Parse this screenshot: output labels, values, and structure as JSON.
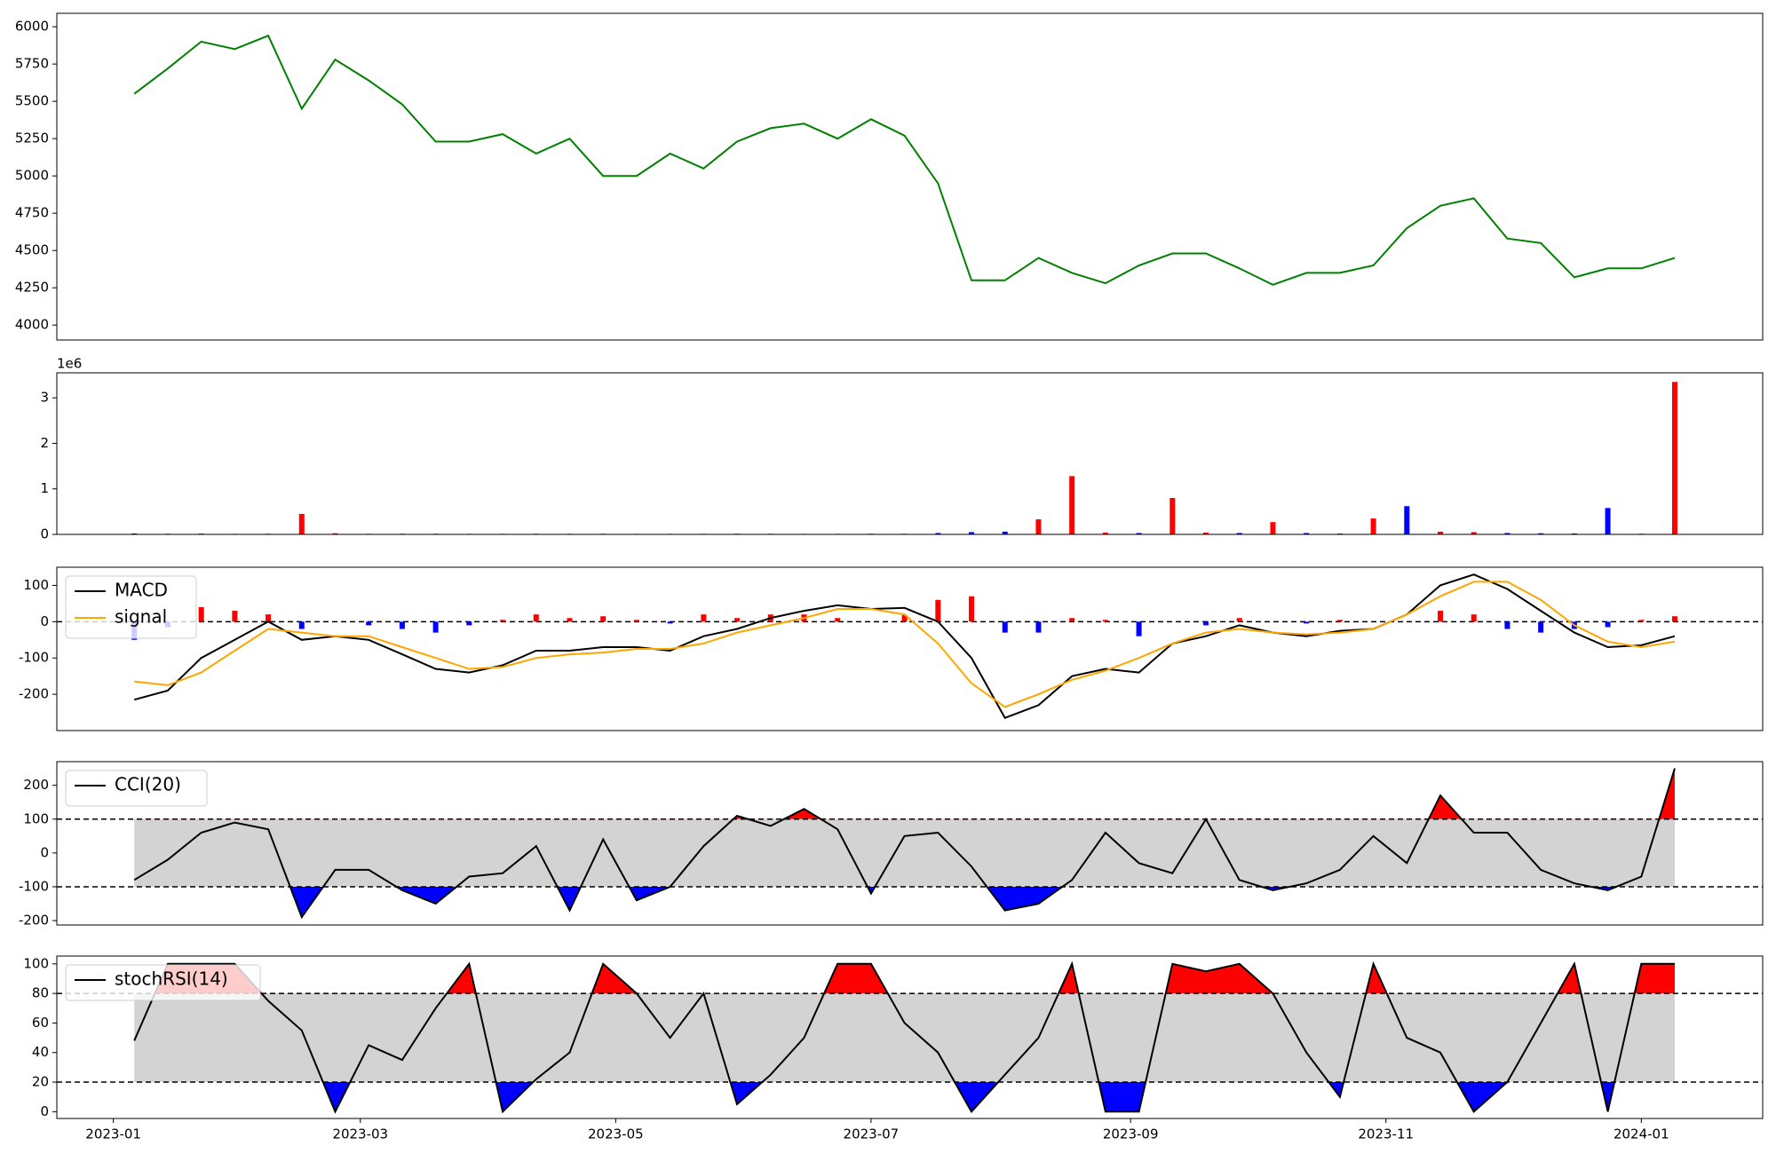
{
  "chart_data": [
    {
      "type": "line",
      "color": "#008000",
      "x": [
        5,
        13,
        21,
        29,
        37,
        45,
        53,
        61,
        69,
        77,
        85,
        93,
        101,
        109,
        117,
        125,
        133,
        141,
        149,
        157,
        165,
        173,
        181,
        189,
        197,
        205,
        213,
        221,
        229,
        237,
        245,
        253,
        261,
        269,
        277,
        285,
        293,
        301,
        309,
        317,
        325,
        333,
        341,
        349,
        357,
        365,
        373
      ],
      "values": [
        5550,
        5720,
        5900,
        5850,
        5940,
        5450,
        5780,
        5640,
        5480,
        5230,
        5230,
        5280,
        5150,
        5250,
        5000,
        5000,
        5150,
        5050,
        5230,
        5320,
        5350,
        5250,
        5380,
        5270,
        4950,
        4300,
        4300,
        4450,
        4350,
        4280,
        4400,
        4480,
        4480,
        4380,
        4270,
        4350,
        4350,
        4400,
        4650,
        4800,
        4850,
        4580,
        4550,
        4320,
        4380,
        4380,
        4450
      ],
      "xlim": [
        -13.5,
        394
      ],
      "ylim": [
        3900,
        6090
      ],
      "yticks": [
        4000,
        4250,
        4500,
        4750,
        5000,
        5250,
        5500,
        5750,
        6000
      ]
    },
    {
      "type": "bar",
      "offset_text": "1e6",
      "x": [
        5,
        13,
        21,
        29,
        37,
        45,
        53,
        61,
        69,
        77,
        85,
        93,
        101,
        109,
        117,
        125,
        133,
        141,
        149,
        157,
        165,
        173,
        181,
        189,
        197,
        205,
        213,
        221,
        229,
        237,
        245,
        253,
        261,
        269,
        277,
        285,
        293,
        301,
        309,
        317,
        325,
        333,
        341,
        349,
        357,
        365,
        373
      ],
      "values": [
        20000,
        15000,
        18000,
        12000,
        15000,
        450000,
        25000,
        12000,
        15000,
        14000,
        13000,
        12000,
        15000,
        14000,
        13000,
        12000,
        13000,
        12000,
        15000,
        14000,
        13000,
        12000,
        15000,
        13000,
        30000,
        50000,
        60000,
        330000,
        1280000,
        40000,
        30000,
        800000,
        40000,
        30000,
        270000,
        30000,
        20000,
        350000,
        620000,
        60000,
        50000,
        30000,
        25000,
        20000,
        580000,
        15000,
        3350000
      ],
      "colors": [
        "#0000ff",
        "#ff0000",
        "#ff0000",
        "#0000ff",
        "#ff0000",
        "#ff0000",
        "#ff0000",
        "#0000ff",
        "#ff0000",
        "#0000ff",
        "#ff0000",
        "#0000ff",
        "#ff0000",
        "#ff0000",
        "#0000ff",
        "#0000ff",
        "#ff0000",
        "#0000ff",
        "#ff0000",
        "#ff0000",
        "#ff0000",
        "#0000ff",
        "#ff0000",
        "#0000ff",
        "#0000ff",
        "#0000ff",
        "#0000ff",
        "#ff0000",
        "#ff0000",
        "#ff0000",
        "#0000ff",
        "#ff0000",
        "#ff0000",
        "#0000ff",
        "#ff0000",
        "#0000ff",
        "#ff0000",
        "#ff0000",
        "#0000ff",
        "#ff0000",
        "#ff0000",
        "#0000ff",
        "#0000ff",
        "#0000ff",
        "#0000ff",
        "#ff0000",
        "#ff0000"
      ],
      "xlim": [
        -13.5,
        394
      ],
      "ylim": [
        0,
        3550000
      ],
      "yticks": [
        0,
        {
          "value": 1000000,
          "label": "1"
        },
        {
          "value": 2000000,
          "label": "2"
        },
        {
          "value": 3000000,
          "label": "3"
        }
      ]
    },
    {
      "type": "line",
      "hlines": [
        0
      ],
      "x": [
        5,
        13,
        21,
        29,
        37,
        45,
        53,
        61,
        69,
        77,
        85,
        93,
        101,
        109,
        117,
        125,
        133,
        141,
        149,
        157,
        165,
        173,
        181,
        189,
        197,
        205,
        213,
        221,
        229,
        237,
        245,
        253,
        261,
        269,
        277,
        285,
        293,
        301,
        309,
        317,
        325,
        333,
        341,
        349,
        357,
        365,
        373
      ],
      "series": [
        {
          "name": "MACD",
          "color": "#000000",
          "values": [
            -215,
            -190,
            -100,
            -50,
            0,
            -50,
            -40,
            -50,
            -90,
            -130,
            -140,
            -120,
            -80,
            -80,
            -70,
            -70,
            -80,
            -40,
            -20,
            10,
            30,
            45,
            35,
            38,
            0,
            -100,
            -265,
            -230,
            -150,
            -130,
            -140,
            -60,
            -40,
            -10,
            -30,
            -40,
            -25,
            -20,
            20,
            100,
            130,
            90,
            30,
            -30,
            -70,
            -65,
            -40
          ]
        },
        {
          "name": "signal",
          "color": "#ffa500",
          "values": [
            -165,
            -175,
            -140,
            -80,
            -20,
            -30,
            -40,
            -40,
            -70,
            -100,
            -130,
            -125,
            -100,
            -90,
            -85,
            -75,
            -75,
            -60,
            -30,
            -10,
            10,
            35,
            35,
            20,
            -60,
            -170,
            -235,
            -200,
            -160,
            -135,
            -100,
            -60,
            -30,
            -20,
            -30,
            -35,
            -30,
            -20,
            20,
            70,
            110,
            110,
            60,
            -10,
            -55,
            -70,
            -55
          ]
        }
      ],
      "histogram": {
        "pos_color": "#ff0000",
        "neg_color": "#0000ff",
        "values": [
          -50,
          -15,
          40,
          30,
          20,
          -20,
          0,
          -10,
          -20,
          -30,
          -10,
          5,
          20,
          10,
          15,
          5,
          -5,
          20,
          10,
          20,
          20,
          10,
          0,
          18,
          60,
          70,
          -30,
          -30,
          10,
          5,
          -40,
          0,
          -10,
          10,
          0,
          -5,
          5,
          0,
          0,
          30,
          20,
          -20,
          -30,
          -20,
          -15,
          5,
          15
        ]
      },
      "xlim": [
        -13.5,
        394
      ],
      "ylim": [
        -300,
        150
      ],
      "yticks": [
        -200,
        -100,
        0,
        100
      ]
    },
    {
      "type": "band",
      "thresholds": [
        -100,
        100
      ],
      "band_color": "#d3d3d3",
      "above_color": "#ff0000",
      "below_color": "#0000ff",
      "x": [
        5,
        13,
        21,
        29,
        37,
        45,
        53,
        61,
        69,
        77,
        85,
        93,
        101,
        109,
        117,
        125,
        133,
        141,
        149,
        157,
        165,
        173,
        181,
        189,
        197,
        205,
        213,
        221,
        229,
        237,
        245,
        253,
        261,
        269,
        277,
        285,
        293,
        301,
        309,
        317,
        325,
        333,
        341,
        349,
        357,
        365,
        373
      ],
      "series": [
        {
          "name": "CCI(20)",
          "color": "#000000",
          "values": [
            -80,
            -20,
            60,
            90,
            70,
            -190,
            -50,
            -50,
            -110,
            -150,
            -70,
            -60,
            20,
            -170,
            40,
            -140,
            -100,
            20,
            110,
            80,
            130,
            70,
            -120,
            50,
            60,
            -40,
            -170,
            -150,
            -80,
            60,
            -30,
            -60,
            100,
            -80,
            -110,
            -90,
            -50,
            50,
            -30,
            170,
            60,
            60,
            -50,
            -90,
            -110,
            -70,
            250
          ]
        }
      ],
      "xlim": [
        -13.5,
        394
      ],
      "ylim": [
        -213,
        270
      ],
      "yticks": [
        -200,
        -100,
        0,
        100,
        200
      ]
    },
    {
      "type": "band",
      "thresholds": [
        20,
        80
      ],
      "band_color": "#d3d3d3",
      "above_color": "#ff0000",
      "below_color": "#0000ff",
      "x": [
        5,
        13,
        21,
        29,
        37,
        45,
        53,
        61,
        69,
        77,
        85,
        93,
        101,
        109,
        117,
        125,
        133,
        141,
        149,
        157,
        165,
        173,
        181,
        189,
        197,
        205,
        213,
        221,
        229,
        237,
        245,
        253,
        261,
        269,
        277,
        285,
        293,
        301,
        309,
        317,
        325,
        333,
        341,
        349,
        357,
        365,
        373
      ],
      "series": [
        {
          "name": "stochRSI(14)",
          "color": "#000000",
          "values": [
            48,
            100,
            100,
            100,
            75,
            55,
            0,
            45,
            35,
            70,
            100,
            0,
            22,
            40,
            100,
            80,
            50,
            80,
            5,
            25,
            50,
            100,
            100,
            60,
            40,
            0,
            25,
            50,
            100,
            0,
            0,
            100,
            95,
            100,
            80,
            40,
            10,
            100,
            50,
            40,
            0,
            20,
            60,
            100,
            0,
            100,
            100
          ]
        }
      ],
      "xlim": [
        -13.5,
        394
      ],
      "ylim": [
        -4.6,
        105.3
      ],
      "yticks": [
        0,
        20,
        40,
        60,
        80,
        100
      ],
      "xticks": [
        {
          "value": 0,
          "label": "2023-01"
        },
        {
          "value": 59,
          "label": "2023-03"
        },
        {
          "value": 120,
          "label": "2023-05"
        },
        {
          "value": 181,
          "label": "2023-07"
        },
        {
          "value": 243,
          "label": "2023-09"
        },
        {
          "value": 304,
          "label": "2023-11"
        },
        {
          "value": 365,
          "label": "2024-01"
        }
      ]
    }
  ]
}
